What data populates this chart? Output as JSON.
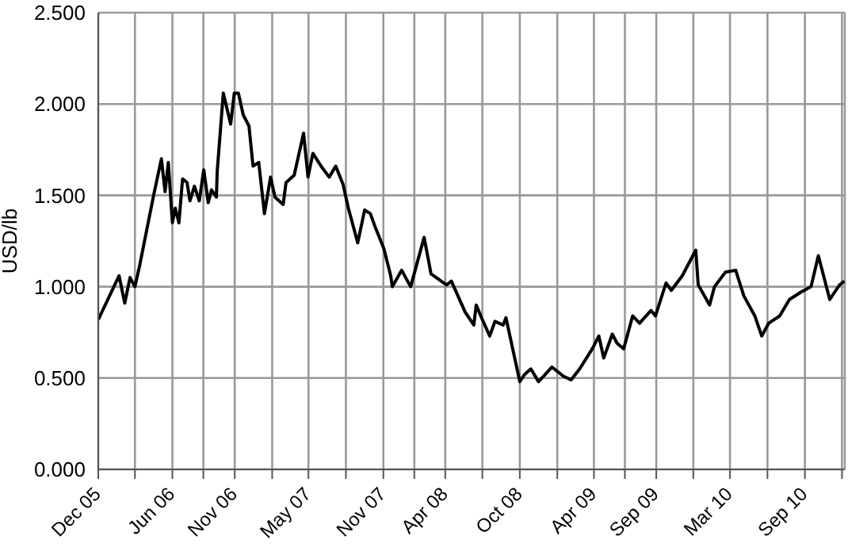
{
  "chart_data": {
    "type": "line",
    "ylabel": "USD/lb",
    "xlim": [
      "2005-12-01",
      "2010-12-08"
    ],
    "xticks": [
      {
        "value": "2005-12-01",
        "label": "Dec 05"
      },
      {
        "value": "2006-03-01",
        "label": null
      },
      {
        "value": "2006-06-01",
        "label": "Jun 06"
      },
      {
        "value": "2006-08-16",
        "label": null
      },
      {
        "value": "2006-11-01",
        "label": "Nov 06"
      },
      {
        "value": "2007-02-01",
        "label": null
      },
      {
        "value": "2007-05-01",
        "label": "May 07"
      },
      {
        "value": "2007-08-01",
        "label": null
      },
      {
        "value": "2007-11-01",
        "label": "Nov 07"
      },
      {
        "value": "2008-01-16",
        "label": null
      },
      {
        "value": "2008-04-01",
        "label": "Apr 08"
      },
      {
        "value": "2008-07-01",
        "label": null
      },
      {
        "value": "2008-10-01",
        "label": "Oct 08"
      },
      {
        "value": "2009-01-01",
        "label": null
      },
      {
        "value": "2009-04-01",
        "label": "Apr 09"
      },
      {
        "value": "2009-06-16",
        "label": null
      },
      {
        "value": "2009-09-01",
        "label": "Sep 09"
      },
      {
        "value": "2009-12-01",
        "label": null
      },
      {
        "value": "2010-03-01",
        "label": "Mar 10"
      },
      {
        "value": "2010-06-01",
        "label": null
      },
      {
        "value": "2010-09-01",
        "label": "Sep 10"
      },
      {
        "value": "2010-12-01",
        "label": null
      }
    ],
    "ylim": [
      0,
      2.5
    ],
    "yticks": [
      {
        "value": 0,
        "label": "0.000"
      },
      {
        "value": 0.5,
        "label": "0.500"
      },
      {
        "value": 1,
        "label": "1.000"
      },
      {
        "value": 1.5,
        "label": "1.500"
      },
      {
        "value": 2,
        "label": "2.000"
      },
      {
        "value": 2.5,
        "label": "2.500"
      }
    ],
    "grid": true,
    "legend": false,
    "marker": "none",
    "line_style": "solid",
    "x": [
      "2005-12-01",
      "2006-01-21",
      "2006-02-04",
      "2006-02-17",
      "2006-03-01",
      "2006-03-13",
      "2006-04-15",
      "2006-05-05",
      "2006-05-14",
      "2006-05-22",
      "2006-06-01",
      "2006-06-08",
      "2006-06-17",
      "2006-06-26",
      "2006-07-07",
      "2006-07-14",
      "2006-07-25",
      "2006-08-06",
      "2006-08-17",
      "2006-08-28",
      "2006-09-05",
      "2006-09-17",
      "2006-09-19",
      "2006-10-04",
      "2006-10-22",
      "2006-10-31",
      "2006-11-10",
      "2006-11-22",
      "2006-12-06",
      "2006-12-16",
      "2006-12-30",
      "2007-01-13",
      "2007-01-28",
      "2007-02-08",
      "2007-02-28",
      "2007-03-07",
      "2007-03-27",
      "2007-04-19",
      "2007-04-30",
      "2007-05-12",
      "2007-06-01",
      "2007-06-21",
      "2007-07-07",
      "2007-07-25",
      "2007-08-07",
      "2007-08-30",
      "2007-09-16",
      "2007-09-30",
      "2007-10-13",
      "2007-11-02",
      "2007-11-19",
      "2007-11-23",
      "2007-12-16",
      "2008-01-07",
      "2008-02-09",
      "2008-02-26",
      "2008-04-04",
      "2008-04-16",
      "2008-05-20",
      "2008-06-10",
      "2008-06-16",
      "2008-06-29",
      "2008-07-19",
      "2008-08-01",
      "2008-08-21",
      "2008-08-28",
      "2008-10-01",
      "2008-10-13",
      "2008-10-28",
      "2008-11-16",
      "2008-12-19",
      "2009-01-16",
      "2009-02-04",
      "2009-02-25",
      "2009-03-28",
      "2009-04-13",
      "2009-04-25",
      "2009-05-16",
      "2009-05-28",
      "2009-06-13",
      "2009-07-05",
      "2009-07-22",
      "2009-08-19",
      "2009-08-30",
      "2009-09-25",
      "2009-10-08",
      "2009-11-04",
      "2009-12-07",
      "2009-12-13",
      "2010-01-10",
      "2010-01-22",
      "2010-02-18",
      "2010-03-15",
      "2010-04-04",
      "2010-05-01",
      "2010-05-18",
      "2010-06-04",
      "2010-07-01",
      "2010-07-25",
      "2010-08-22",
      "2010-09-16",
      "2010-10-04",
      "2010-11-01",
      "2010-11-13",
      "2010-11-25",
      "2010-12-07"
    ],
    "series": [
      {
        "color": "#000000",
        "values": [
          0.82,
          1.06,
          0.91,
          1.05,
          1.0,
          1.12,
          1.49,
          1.7,
          1.52,
          1.68,
          1.35,
          1.43,
          1.35,
          1.59,
          1.57,
          1.47,
          1.55,
          1.47,
          1.64,
          1.46,
          1.53,
          1.49,
          1.63,
          2.06,
          1.89,
          2.06,
          2.06,
          1.94,
          1.88,
          1.66,
          1.68,
          1.4,
          1.6,
          1.49,
          1.45,
          1.57,
          1.61,
          1.84,
          1.6,
          1.73,
          1.66,
          1.6,
          1.66,
          1.56,
          1.43,
          1.24,
          1.42,
          1.4,
          1.32,
          1.21,
          1.06,
          1.0,
          1.09,
          1.0,
          1.27,
          1.07,
          1.01,
          1.03,
          0.86,
          0.79,
          0.9,
          0.83,
          0.73,
          0.81,
          0.79,
          0.83,
          0.48,
          0.52,
          0.55,
          0.48,
          0.56,
          0.51,
          0.49,
          0.55,
          0.66,
          0.73,
          0.61,
          0.74,
          0.69,
          0.66,
          0.84,
          0.8,
          0.87,
          0.84,
          1.02,
          0.98,
          1.06,
          1.2,
          1.01,
          0.9,
          1.0,
          1.08,
          1.09,
          0.95,
          0.84,
          0.73,
          0.8,
          0.84,
          0.93,
          0.97,
          1.0,
          1.17,
          0.93,
          0.97,
          1.01,
          1.03
        ]
      }
    ]
  }
}
